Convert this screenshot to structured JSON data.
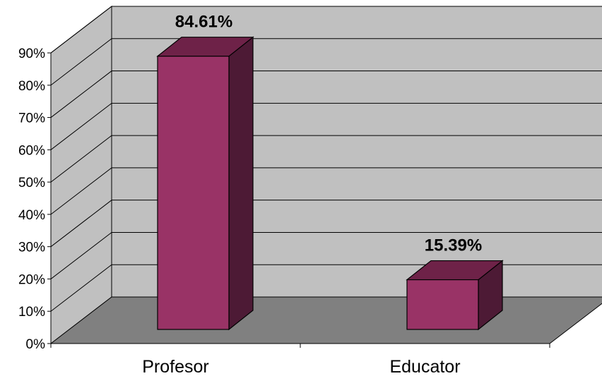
{
  "chart_data": {
    "type": "bar",
    "style": "3d-column",
    "categories": [
      "Profesor",
      "Educator"
    ],
    "values": [
      84.61,
      15.39
    ],
    "data_labels": [
      "84.61%",
      "15.39%"
    ],
    "ylim": [
      0,
      90
    ],
    "yticks": [
      0,
      10,
      20,
      30,
      40,
      50,
      60,
      70,
      80,
      90
    ],
    "ytick_labels": [
      "0%",
      "10%",
      "20%",
      "30%",
      "40%",
      "50%",
      "60%",
      "70%",
      "80%",
      "90%"
    ],
    "grid": true,
    "legend": "none",
    "colors": {
      "bar_front": "#993366",
      "bar_top": "#6E2248",
      "bar_side": "#4D1A35",
      "back_wall": "#C0C0C0",
      "side_wall": "#C0C0C0",
      "floor": "#808080",
      "gridline": "#000000"
    }
  }
}
